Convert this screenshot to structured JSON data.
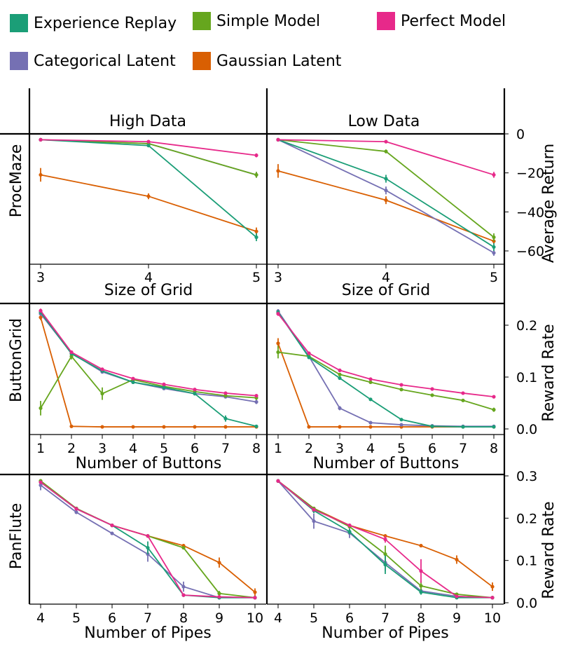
{
  "legend": [
    {
      "name": "Experience Replay",
      "color": "#1b9e77"
    },
    {
      "name": "Simple Model",
      "color": "#66a61e"
    },
    {
      "name": "Perfect Model",
      "color": "#e7298a"
    },
    {
      "name": "Categorical Latent",
      "color": "#7570b3"
    },
    {
      "name": "Gaussian Latent",
      "color": "#d95f02"
    }
  ],
  "column_titles": [
    "High Data",
    "Low Data"
  ],
  "chart_data": [
    {
      "type": "line",
      "id": "procmaze-high",
      "row_label": "ProcMaze",
      "column": "High Data",
      "x": [
        3,
        4,
        5
      ],
      "xlabel": "Size of Grid",
      "xticks": [
        "3",
        "4",
        "5"
      ],
      "ylabel": "Average Return",
      "ylim": [
        -65,
        0
      ],
      "yticks": [
        "0",
        "−20",
        "−40",
        "−60"
      ],
      "series": [
        {
          "name": "Experience Replay",
          "values": [
            -3,
            -6,
            -53
          ],
          "err": [
            0,
            0.5,
            2
          ]
        },
        {
          "name": "Simple Model",
          "values": [
            -3,
            -5,
            -21
          ],
          "err": [
            0,
            0.5,
            1.5
          ]
        },
        {
          "name": "Perfect Model",
          "values": [
            -3,
            -4,
            -11
          ],
          "err": [
            0,
            0.5,
            1
          ]
        },
        {
          "name": "Categorical Latent",
          "values": [
            -3,
            -5,
            -21
          ],
          "err": [
            0,
            0.5,
            1.5
          ]
        },
        {
          "name": "Gaussian Latent",
          "values": [
            -21,
            -32,
            -50
          ],
          "err": [
            3.5,
            1.5,
            2
          ]
        }
      ]
    },
    {
      "type": "line",
      "id": "procmaze-low",
      "row_label": "ProcMaze",
      "column": "Low Data",
      "x": [
        3,
        4,
        5
      ],
      "xlabel": "Size of Grid",
      "xticks": [
        "3",
        "4",
        "5"
      ],
      "ylabel": "Average Return",
      "ylim": [
        -65,
        0
      ],
      "yticks": [
        "0",
        "−20",
        "−40",
        "−60"
      ],
      "series": [
        {
          "name": "Experience Replay",
          "values": [
            -3,
            -23,
            -58
          ],
          "err": [
            0,
            2,
            2
          ]
        },
        {
          "name": "Simple Model",
          "values": [
            -3,
            -9,
            -53
          ],
          "err": [
            0,
            1,
            2
          ]
        },
        {
          "name": "Perfect Model",
          "values": [
            -3,
            -4,
            -21
          ],
          "err": [
            0,
            0.5,
            1.5
          ]
        },
        {
          "name": "Categorical Latent",
          "values": [
            -3,
            -29,
            -61
          ],
          "err": [
            0,
            2,
            1.5
          ]
        },
        {
          "name": "Gaussian Latent",
          "values": [
            -19,
            -34,
            -55
          ],
          "err": [
            3.5,
            2,
            1.5
          ]
        }
      ]
    },
    {
      "type": "line",
      "id": "buttongrid-high",
      "row_label": "ButtonGrid",
      "column": "High Data",
      "x": [
        1,
        2,
        3,
        4,
        5,
        6,
        7,
        8
      ],
      "xlabel": "Number of Buttons",
      "xticks": [
        "1",
        "2",
        "3",
        "4",
        "5",
        "6",
        "7",
        "8"
      ],
      "ylabel": "Reward Rate",
      "ylim": [
        0,
        0.235
      ],
      "yticks": [
        "0.0",
        "0.1",
        "0.2"
      ],
      "series": [
        {
          "name": "Experience Replay",
          "values": [
            0.225,
            0.145,
            0.112,
            0.09,
            0.08,
            0.068,
            0.02,
            0.005
          ],
          "err": [
            0.004,
            0.003,
            0.003,
            0.002,
            0.002,
            0.003,
            0.006,
            0.002
          ]
        },
        {
          "name": "Simple Model",
          "values": [
            0.04,
            0.14,
            0.068,
            0.095,
            0.082,
            0.072,
            0.064,
            0.06
          ],
          "err": [
            0.014,
            0.006,
            0.012,
            0.004,
            0.003,
            0.003,
            0.003,
            0.004
          ]
        },
        {
          "name": "Perfect Model",
          "values": [
            0.228,
            0.148,
            0.115,
            0.097,
            0.086,
            0.076,
            0.069,
            0.064
          ],
          "err": [
            0.004,
            0.002,
            0.002,
            0.002,
            0.002,
            0.002,
            0.002,
            0.002
          ]
        },
        {
          "name": "Categorical Latent",
          "values": [
            0.222,
            0.146,
            0.11,
            0.09,
            0.078,
            0.068,
            0.062,
            0.052
          ],
          "err": [
            0.004,
            0.002,
            0.003,
            0.002,
            0.002,
            0.003,
            0.003,
            0.004
          ]
        },
        {
          "name": "Gaussian Latent",
          "values": [
            0.215,
            0.005,
            0.004,
            0.004,
            0.004,
            0.004,
            0.004,
            0.004
          ],
          "err": [
            0.005,
            0.001,
            0.001,
            0.001,
            0.001,
            0.001,
            0.001,
            0.001
          ]
        }
      ]
    },
    {
      "type": "line",
      "id": "buttongrid-low",
      "row_label": "ButtonGrid",
      "column": "Low Data",
      "x": [
        1,
        2,
        3,
        4,
        5,
        6,
        7,
        8
      ],
      "xlabel": "Number of Buttons",
      "xticks": [
        "1",
        "2",
        "3",
        "4",
        "5",
        "6",
        "7",
        "8"
      ],
      "ylabel": "Reward Rate",
      "ylim": [
        0,
        0.235
      ],
      "yticks": [
        "0.0",
        "0.1",
        "0.2"
      ],
      "series": [
        {
          "name": "Experience Replay",
          "values": [
            0.225,
            0.138,
            0.098,
            0.057,
            0.018,
            0.005,
            0.004,
            0.004
          ],
          "err": [
            0.004,
            0.003,
            0.003,
            0.003,
            0.003,
            0.001,
            0.001,
            0.001
          ]
        },
        {
          "name": "Simple Model",
          "values": [
            0.148,
            0.14,
            0.105,
            0.09,
            0.076,
            0.065,
            0.055,
            0.037
          ],
          "err": [
            0.012,
            0.004,
            0.003,
            0.002,
            0.002,
            0.002,
            0.003,
            0.004
          ]
        },
        {
          "name": "Perfect Model",
          "values": [
            0.222,
            0.146,
            0.113,
            0.096,
            0.085,
            0.077,
            0.069,
            0.062
          ],
          "err": [
            0.004,
            0.002,
            0.002,
            0.002,
            0.002,
            0.002,
            0.002,
            0.002
          ]
        },
        {
          "name": "Categorical Latent",
          "values": [
            0.227,
            0.14,
            0.04,
            0.012,
            0.008,
            0.006,
            0.005,
            0.005
          ],
          "err": [
            0.004,
            0.003,
            0.004,
            0.002,
            0.001,
            0.001,
            0.001,
            0.001
          ]
        },
        {
          "name": "Gaussian Latent",
          "values": [
            0.165,
            0.004,
            0.004,
            0.004,
            0.004,
            0.004,
            0.004,
            0.004
          ],
          "err": [
            0.01,
            0.001,
            0.001,
            0.001,
            0.001,
            0.001,
            0.001,
            0.001
          ]
        }
      ]
    },
    {
      "type": "line",
      "id": "panflute-high",
      "row_label": "PanFlute",
      "column": "High Data",
      "x": [
        4,
        5,
        6,
        7,
        8,
        9,
        10
      ],
      "xlabel": "Number of Pipes",
      "xticks": [
        "4",
        "5",
        "6",
        "7",
        "8",
        "9",
        "10"
      ],
      "ylabel": "Reward Rate",
      "ylim": [
        0,
        0.3
      ],
      "yticks": [
        "0.0",
        "0.1",
        "0.2",
        "0.3"
      ],
      "series": [
        {
          "name": "Experience Replay",
          "values": [
            0.285,
            0.222,
            0.183,
            0.13,
            0.018,
            0.012,
            0.012
          ],
          "err": [
            0.004,
            0.004,
            0.004,
            0.015,
            0.004,
            0.002,
            0.002
          ]
        },
        {
          "name": "Simple Model",
          "values": [
            0.288,
            0.223,
            0.183,
            0.158,
            0.13,
            0.022,
            0.012
          ],
          "err": [
            0.004,
            0.004,
            0.003,
            0.003,
            0.004,
            0.006,
            0.002
          ]
        },
        {
          "name": "Perfect Model",
          "values": [
            0.285,
            0.222,
            0.183,
            0.158,
            0.018,
            0.014,
            0.012
          ],
          "err": [
            0.004,
            0.003,
            0.003,
            0.004,
            0.003,
            0.002,
            0.002
          ]
        },
        {
          "name": "Categorical Latent",
          "values": [
            0.278,
            0.214,
            0.164,
            0.115,
            0.038,
            0.012,
            0.012
          ],
          "err": [
            0.012,
            0.004,
            0.004,
            0.018,
            0.012,
            0.002,
            0.002
          ]
        },
        {
          "name": "Gaussian Latent",
          "values": [
            0.288,
            0.223,
            0.183,
            0.158,
            0.135,
            0.095,
            0.025
          ],
          "err": [
            0.004,
            0.003,
            0.003,
            0.003,
            0.004,
            0.012,
            0.009
          ]
        }
      ]
    },
    {
      "type": "line",
      "id": "panflute-low",
      "row_label": "PanFlute",
      "column": "Low Data",
      "x": [
        4,
        5,
        6,
        7,
        8,
        9,
        10
      ],
      "xlabel": "Number of Pipes",
      "xticks": [
        "4",
        "5",
        "6",
        "7",
        "8",
        "9",
        "10"
      ],
      "ylabel": "Reward Rate",
      "ylim": [
        0,
        0.3
      ],
      "yticks": [
        "0.0",
        "0.1",
        "0.2",
        "0.3"
      ],
      "series": [
        {
          "name": "Experience Replay",
          "values": [
            0.288,
            0.218,
            0.168,
            0.09,
            0.025,
            0.012,
            0.012
          ],
          "err": [
            0.004,
            0.006,
            0.006,
            0.022,
            0.006,
            0.002,
            0.002
          ]
        },
        {
          "name": "Simple Model",
          "values": [
            0.288,
            0.223,
            0.18,
            0.115,
            0.04,
            0.02,
            0.012
          ],
          "err": [
            0.004,
            0.004,
            0.004,
            0.02,
            0.012,
            0.004,
            0.002
          ]
        },
        {
          "name": "Perfect Model",
          "values": [
            0.288,
            0.22,
            0.183,
            0.15,
            0.075,
            0.015,
            0.012
          ],
          "err": [
            0.004,
            0.004,
            0.004,
            0.008,
            0.028,
            0.003,
            0.002
          ]
        },
        {
          "name": "Categorical Latent",
          "values": [
            0.288,
            0.193,
            0.165,
            0.095,
            0.028,
            0.015,
            0.012
          ],
          "err": [
            0.004,
            0.018,
            0.012,
            0.02,
            0.006,
            0.003,
            0.002
          ]
        },
        {
          "name": "Gaussian Latent",
          "values": [
            0.288,
            0.223,
            0.183,
            0.158,
            0.135,
            0.102,
            0.038
          ],
          "err": [
            0.004,
            0.004,
            0.004,
            0.004,
            0.004,
            0.01,
            0.01
          ]
        }
      ]
    }
  ]
}
